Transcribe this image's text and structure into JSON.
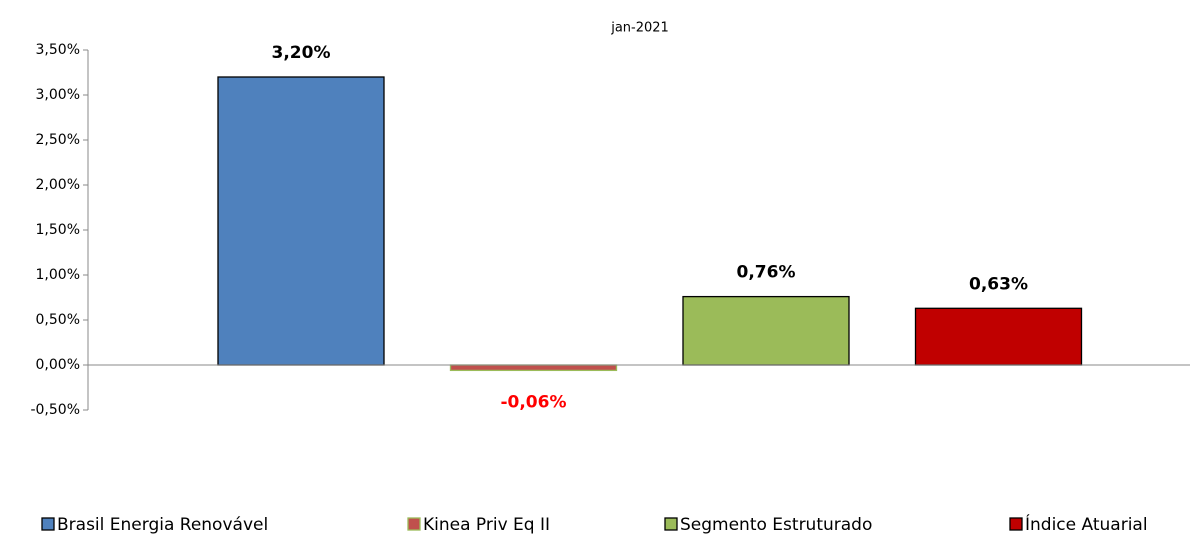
{
  "chart_data": {
    "type": "bar",
    "categories": [
      "jan-2021"
    ],
    "series": [
      {
        "name": "Brasil Energia Renovável",
        "color": "#4f81bd",
        "edgecolor": "#000000",
        "label_color": "#000000",
        "values": [
          3.2
        ],
        "value_labels": [
          "3,20%"
        ]
      },
      {
        "name": "Kinea Priv Eq II",
        "color": "#c0504d",
        "edgecolor": "#9bbb59",
        "label_color": "#ff0000",
        "values": [
          -0.06
        ],
        "value_labels": [
          "-0,06%"
        ]
      },
      {
        "name": "Segmento Estruturado",
        "color": "#9bbb59",
        "edgecolor": "#000000",
        "label_color": "#000000",
        "values": [
          0.76
        ],
        "value_labels": [
          "0,76%"
        ]
      },
      {
        "name": "Índice Atuarial",
        "color": "#c00000",
        "edgecolor": "#000000",
        "label_color": "#000000",
        "values": [
          0.63
        ],
        "value_labels": [
          "0,63%"
        ]
      }
    ],
    "ylim": [
      -0.5,
      3.5
    ],
    "yticks": [
      {
        "value": -0.5,
        "label": "-0,50%"
      },
      {
        "value": 0,
        "label": "0,00%"
      },
      {
        "value": 0.5,
        "label": "0,50%"
      },
      {
        "value": 1,
        "label": "1,00%"
      },
      {
        "value": 1.5,
        "label": "1,50%"
      },
      {
        "value": 2,
        "label": "2,00%"
      },
      {
        "value": 2.5,
        "label": "2,50%"
      },
      {
        "value": 3,
        "label": "3,00%"
      },
      {
        "value": 3.5,
        "label": "3,50%"
      }
    ],
    "legend": "bottom"
  }
}
